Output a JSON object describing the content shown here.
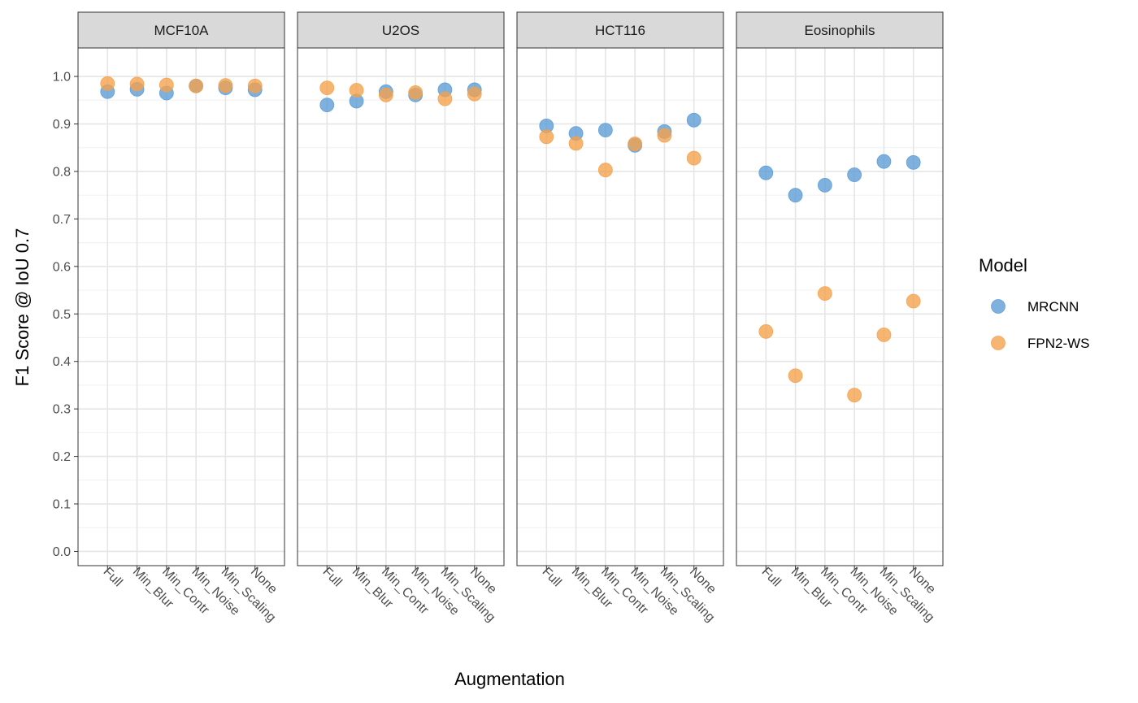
{
  "chart_data": {
    "type": "scatter",
    "xlabel": "Augmentation",
    "ylabel": "F1 Score @ IoU 0.7",
    "ylim": [
      -0.03,
      1.06
    ],
    "y_ticks": [
      0.0,
      0.1,
      0.2,
      0.3,
      0.4,
      0.5,
      0.6,
      0.7,
      0.8,
      0.9,
      1.0
    ],
    "y_tick_labels": [
      "0.0",
      "0.1",
      "0.2",
      "0.3",
      "0.4",
      "0.5",
      "0.6",
      "0.7",
      "0.8",
      "0.9",
      "1.0"
    ],
    "categories": [
      "Full",
      "Min_Blur",
      "Min_Contr",
      "Min_Noise",
      "Min_Scaling",
      "None"
    ],
    "grid": true,
    "legend": {
      "title": "Model",
      "position": "right",
      "entries": [
        {
          "label": "MRCNN",
          "color": "#5b9bd5"
        },
        {
          "label": "FPN2-WS",
          "color": "#f5a04a"
        }
      ]
    },
    "panels": [
      {
        "title": "MCF10A",
        "series": [
          {
            "name": "MRCNN",
            "values": [
              0.968,
              0.973,
              0.965,
              0.98,
              0.976,
              0.972
            ]
          },
          {
            "name": "FPN2-WS",
            "values": [
              0.985,
              0.984,
              0.982,
              0.98,
              0.981,
              0.98
            ]
          }
        ]
      },
      {
        "title": "U2OS",
        "series": [
          {
            "name": "MRCNN",
            "values": [
              0.94,
              0.948,
              0.968,
              0.961,
              0.972,
              0.972
            ]
          },
          {
            "name": "FPN2-WS",
            "values": [
              0.976,
              0.971,
              0.961,
              0.966,
              0.953,
              0.963
            ]
          }
        ]
      },
      {
        "title": "HCT116",
        "series": [
          {
            "name": "MRCNN",
            "values": [
              0.896,
              0.88,
              0.887,
              0.855,
              0.884,
              0.908
            ]
          },
          {
            "name": "FPN2-WS",
            "values": [
              0.873,
              0.859,
              0.803,
              0.858,
              0.876,
              0.828
            ]
          }
        ]
      },
      {
        "title": "Eosinophils",
        "series": [
          {
            "name": "MRCNN",
            "values": [
              0.797,
              0.75,
              0.771,
              0.793,
              0.821,
              0.819
            ]
          },
          {
            "name": "FPN2-WS",
            "values": [
              0.463,
              0.37,
              0.543,
              0.329,
              0.456,
              0.527
            ]
          }
        ]
      }
    ]
  }
}
